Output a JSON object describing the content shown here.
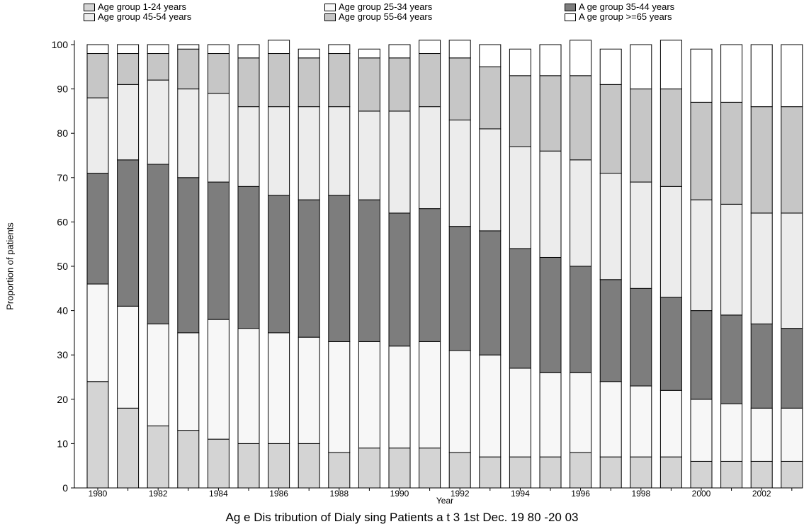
{
  "chart_data": {
    "type": "bar",
    "stacked": true,
    "title": "Age Distribution of Dialysing Patients at 31st Dec. 1980-2003",
    "xlabel": "Year",
    "ylabel": "Proportion of patients",
    "ylim": [
      0,
      100
    ],
    "yticks": [
      0,
      10,
      20,
      30,
      40,
      50,
      60,
      70,
      80,
      90,
      100
    ],
    "categories": [
      "1980",
      "1981",
      "1982",
      "1983",
      "1984",
      "1985",
      "1986",
      "1987",
      "1988",
      "1989",
      "1990",
      "1991",
      "1992",
      "1993",
      "1994",
      "1995",
      "1996",
      "1997",
      "1998",
      "1999",
      "2000",
      "2001",
      "2002",
      "2003"
    ],
    "tick_labels": [
      "1980",
      "",
      "1982",
      "",
      "1984",
      "",
      "1986",
      "",
      "1988",
      "",
      "1990",
      "",
      "1992",
      "",
      "1994",
      "",
      "1996",
      "",
      "1998",
      "",
      "2000",
      "",
      "2002",
      ""
    ],
    "legend": "top",
    "series": [
      {
        "name": "Age group 1-24 years",
        "values": [
          24,
          18,
          14,
          13,
          11,
          10,
          10,
          10,
          8,
          9,
          9,
          9,
          8,
          7,
          7,
          7,
          8,
          7,
          7,
          7,
          6,
          6,
          6,
          6
        ]
      },
      {
        "name": "Age group 25-34 years",
        "values": [
          22,
          23,
          23,
          22,
          27,
          26,
          25,
          24,
          25,
          24,
          23,
          24,
          23,
          23,
          20,
          19,
          18,
          17,
          16,
          15,
          14,
          13,
          12,
          12
        ]
      },
      {
        "name": "Age group 35-44 years",
        "values": [
          25,
          33,
          36,
          35,
          31,
          32,
          31,
          31,
          33,
          32,
          30,
          30,
          28,
          28,
          27,
          26,
          24,
          23,
          22,
          21,
          20,
          20,
          19,
          18
        ]
      },
      {
        "name": "Age group 45-54 years",
        "values": [
          17,
          17,
          19,
          20,
          20,
          18,
          20,
          21,
          20,
          20,
          23,
          23,
          24,
          23,
          23,
          24,
          24,
          24,
          24,
          25,
          25,
          25,
          25,
          26
        ]
      },
      {
        "name": "Age group 55-64 years",
        "values": [
          10,
          7,
          6,
          9,
          9,
          11,
          12,
          11,
          12,
          12,
          12,
          12,
          14,
          14,
          16,
          17,
          19,
          20,
          21,
          22,
          22,
          23,
          24,
          24
        ]
      },
      {
        "name": "Age group >=65 years",
        "values": [
          2,
          2,
          2,
          1,
          2,
          3,
          3,
          2,
          2,
          2,
          3,
          3,
          4,
          5,
          6,
          7,
          8,
          8,
          10,
          11,
          12,
          13,
          14,
          14
        ]
      }
    ],
    "series_colors": [
      "#d4d4d4",
      "#f7f7f7",
      "#7d7d7d",
      "#ececec",
      "#c6c6c6",
      "#ffffff"
    ],
    "legend_labels": [
      [
        "Age group 1-24 years",
        "Age group 45-54 years"
      ],
      [
        "Age group 25-34 years",
        "Age group 55-64 years"
      ],
      [
        "A ge group 35-44 years",
        "A ge group >=65 years"
      ]
    ],
    "caption": "Ag e Dis tribution of Dialy sing Patients a t 3 1st Dec. 19 80 -20 03"
  }
}
